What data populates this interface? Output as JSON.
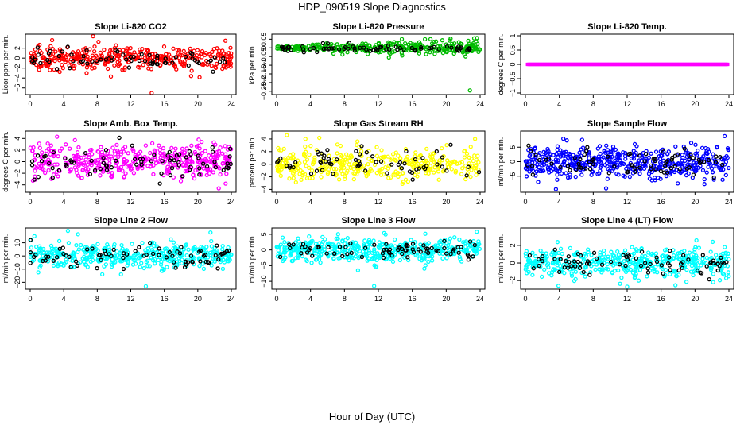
{
  "page": {
    "title": "HDP_090519  Slope Diagnostics",
    "x_title": "Hour of Day (UTC)"
  },
  "chart_data": [
    {
      "type": "scatter",
      "title": "Slope Li-820 CO2",
      "ylabel": "Licor ppm per min.",
      "color": "#ff0000",
      "xlim": [
        0,
        24
      ],
      "xticks": [
        0,
        4,
        8,
        12,
        16,
        20,
        24
      ],
      "ylim": [
        -7,
        4.5
      ],
      "yticks": [
        -6,
        -4,
        -2,
        0,
        2
      ],
      "spread": 1.1,
      "n": 360,
      "black_n": 70,
      "outliers": [
        [
          7.5,
          4.4
        ],
        [
          14.5,
          -7.0
        ],
        [
          19.2,
          -3.6
        ],
        [
          23.3,
          3.5
        ]
      ]
    },
    {
      "type": "scatter",
      "title": "Slope Li-820 Pressure",
      "ylabel": "kPa per min.",
      "color": "#00bb00",
      "xlim": [
        0,
        24
      ],
      "xticks": [
        0,
        4,
        8,
        12,
        16,
        20,
        24
      ],
      "ylim": [
        -0.26,
        0.07
      ],
      "yticks": [
        -0.25,
        -0.2,
        -0.15,
        -0.1,
        -0.05,
        0,
        0.05
      ],
      "spread": 0.012,
      "n": 330,
      "black_n": 70,
      "growth": true,
      "outliers": [
        [
          22.8,
          -0.245
        ],
        [
          23.3,
          0.055
        ],
        [
          17.5,
          0.05
        ]
      ]
    },
    {
      "type": "scatter",
      "title": "Slope Li-820 Temp.",
      "ylabel": "degrees C per min.",
      "color": "#ff00ff",
      "xlim": [
        0,
        24
      ],
      "xticks": [
        0,
        4,
        8,
        12,
        16,
        20,
        24
      ],
      "ylim": [
        -1,
        1
      ],
      "yticks": [
        -1,
        -0.5,
        0,
        0.5,
        1
      ],
      "spread": 0.005,
      "n": 330,
      "black_n": 0,
      "line_mode": true,
      "outliers": []
    },
    {
      "type": "scatter",
      "title": "Slope Amb. Box Temp.",
      "ylabel": "degrees C per min.",
      "color": "#ff00ff",
      "xlim": [
        0,
        24
      ],
      "xticks": [
        0,
        4,
        8,
        12,
        16,
        20,
        24
      ],
      "ylim": [
        -5,
        5
      ],
      "yticks": [
        -4,
        -2,
        0,
        2,
        4
      ],
      "spread": 1.4,
      "n": 420,
      "black_n": 80,
      "outliers": [
        [
          3.2,
          4.3
        ],
        [
          20.1,
          3.8
        ],
        [
          22.5,
          -4.6
        ]
      ]
    },
    {
      "type": "scatter",
      "title": "Slope Gas Stream RH",
      "ylabel": "percent per min.",
      "color": "#ffff00",
      "xlim": [
        0,
        24
      ],
      "xticks": [
        0,
        4,
        8,
        12,
        16,
        20,
        24
      ],
      "ylim": [
        -4.2,
        5
      ],
      "yticks": [
        -4,
        -2,
        0,
        2,
        4
      ],
      "spread": 1.3,
      "n": 360,
      "black_n": 65,
      "outliers": [
        [
          3.4,
          4.0
        ],
        [
          23.4,
          4.0
        ],
        [
          1.2,
          4.6
        ]
      ]
    },
    {
      "type": "scatter",
      "title": "Slope Sample Flow",
      "ylabel": "ml/min per min.",
      "color": "#0000ff",
      "xlim": [
        0,
        24
      ],
      "xticks": [
        0,
        4,
        8,
        12,
        16,
        20,
        24
      ],
      "ylim": [
        -10,
        10
      ],
      "yticks": [
        -5,
        0,
        5
      ],
      "spread": 2.8,
      "n": 480,
      "black_n": 80,
      "outliers": [
        [
          3.6,
          -9.5
        ],
        [
          23.5,
          8.8
        ],
        [
          1.5,
          -7.0
        ]
      ]
    },
    {
      "type": "scatter",
      "title": "Slope Line 2 Flow",
      "ylabel": "ml/min per min.",
      "color": "#00ffff",
      "xlim": [
        0,
        24
      ],
      "xticks": [
        0,
        4,
        8,
        12,
        16,
        20,
        24
      ],
      "ylim": [
        -24,
        20
      ],
      "yticks": [
        -20,
        -10,
        0,
        10
      ],
      "spread": 4.5,
      "n": 420,
      "black_n": 75,
      "outliers": [
        [
          4.5,
          19
        ],
        [
          13.8,
          -23
        ],
        [
          0.5,
          15
        ],
        [
          8.6,
          -14
        ]
      ]
    },
    {
      "type": "scatter",
      "title": "Slope Line 3 Flow",
      "ylabel": "ml/min per min.",
      "color": "#00ffff",
      "xlim": [
        0,
        24
      ],
      "xticks": [
        0,
        4,
        8,
        12,
        16,
        20,
        24
      ],
      "ylim": [
        -12,
        6.5
      ],
      "yticks": [
        -10,
        -5,
        0,
        5
      ],
      "spread": 1.8,
      "n": 460,
      "black_n": 75,
      "outliers": [
        [
          11.5,
          -11.5
        ],
        [
          23.6,
          5.8
        ],
        [
          9.6,
          -6.5
        ]
      ]
    },
    {
      "type": "scatter",
      "title": "Slope Line 4 (LT) Flow",
      "ylabel": "ml/min per min.",
      "color": "#00ffff",
      "xlim": [
        0,
        24
      ],
      "xticks": [
        0,
        4,
        8,
        12,
        16,
        20,
        24
      ],
      "ylim": [
        -2.8,
        3.8
      ],
      "yticks": [
        -2,
        0,
        2
      ],
      "spread": 0.85,
      "n": 440,
      "black_n": 80,
      "outliers": [
        [
          3.9,
          -2.6
        ],
        [
          12.0,
          -2.7
        ],
        [
          23.5,
          1.8
        ]
      ]
    }
  ]
}
